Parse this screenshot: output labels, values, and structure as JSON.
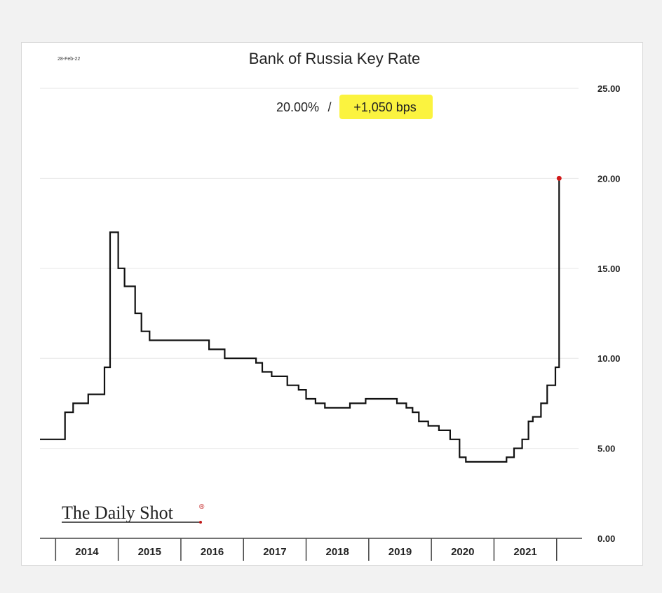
{
  "chart_data": {
    "type": "line",
    "step": true,
    "title": "Bank of Russia Key Rate",
    "date_stamp": "28-Feb-22",
    "subtitle_level": "20.00%",
    "subtitle_sep": "/",
    "subtitle_change": "+1,050 bps",
    "source": "The Daily Shot",
    "source_mark": "®",
    "ylim": [
      0,
      25
    ],
    "y_ticks": [
      "0.00",
      "5.00",
      "10.00",
      "15.00",
      "20.00",
      "25.00"
    ],
    "x_tick_labels": [
      "2014",
      "2015",
      "2016",
      "2017",
      "2018",
      "2019",
      "2020",
      "2021"
    ],
    "xlim": [
      2013.75,
      2022.35
    ],
    "grid": true,
    "y_axis_position": "right",
    "colors": {
      "line": "#111111",
      "endpoint": "#d11a1a",
      "highlight": "#fbf33f",
      "grid": "#e6e6e6"
    },
    "series": [
      {
        "values": [
          [
            2013.75,
            5.5
          ],
          [
            2014.15,
            5.5
          ],
          [
            2014.15,
            7.0
          ],
          [
            2014.28,
            7.0
          ],
          [
            2014.28,
            7.5
          ],
          [
            2014.52,
            7.5
          ],
          [
            2014.52,
            8.0
          ],
          [
            2014.78,
            8.0
          ],
          [
            2014.78,
            9.5
          ],
          [
            2014.87,
            9.5
          ],
          [
            2014.87,
            17.0
          ],
          [
            2015.0,
            17.0
          ],
          [
            2015.0,
            15.0
          ],
          [
            2015.1,
            15.0
          ],
          [
            2015.1,
            14.0
          ],
          [
            2015.27,
            14.0
          ],
          [
            2015.27,
            12.5
          ],
          [
            2015.37,
            12.5
          ],
          [
            2015.37,
            11.5
          ],
          [
            2015.5,
            11.5
          ],
          [
            2015.5,
            11.0
          ],
          [
            2016.45,
            11.0
          ],
          [
            2016.45,
            10.5
          ],
          [
            2016.7,
            10.5
          ],
          [
            2016.7,
            10.0
          ],
          [
            2017.2,
            10.0
          ],
          [
            2017.2,
            9.75
          ],
          [
            2017.3,
            9.75
          ],
          [
            2017.3,
            9.25
          ],
          [
            2017.45,
            9.25
          ],
          [
            2017.45,
            9.0
          ],
          [
            2017.7,
            9.0
          ],
          [
            2017.7,
            8.5
          ],
          [
            2017.88,
            8.5
          ],
          [
            2017.88,
            8.25
          ],
          [
            2018.0,
            8.25
          ],
          [
            2018.0,
            7.75
          ],
          [
            2018.15,
            7.75
          ],
          [
            2018.15,
            7.5
          ],
          [
            2018.3,
            7.5
          ],
          [
            2018.3,
            7.25
          ],
          [
            2018.7,
            7.25
          ],
          [
            2018.7,
            7.5
          ],
          [
            2018.95,
            7.5
          ],
          [
            2018.95,
            7.75
          ],
          [
            2019.45,
            7.75
          ],
          [
            2019.45,
            7.5
          ],
          [
            2019.6,
            7.5
          ],
          [
            2019.6,
            7.25
          ],
          [
            2019.7,
            7.25
          ],
          [
            2019.7,
            7.0
          ],
          [
            2019.8,
            7.0
          ],
          [
            2019.8,
            6.5
          ],
          [
            2019.95,
            6.5
          ],
          [
            2019.95,
            6.25
          ],
          [
            2020.12,
            6.25
          ],
          [
            2020.12,
            6.0
          ],
          [
            2020.3,
            6.0
          ],
          [
            2020.3,
            5.5
          ],
          [
            2020.45,
            5.5
          ],
          [
            2020.45,
            4.5
          ],
          [
            2020.55,
            4.5
          ],
          [
            2020.55,
            4.25
          ],
          [
            2021.2,
            4.25
          ],
          [
            2021.2,
            4.5
          ],
          [
            2021.32,
            4.5
          ],
          [
            2021.32,
            5.0
          ],
          [
            2021.45,
            5.0
          ],
          [
            2021.45,
            5.5
          ],
          [
            2021.55,
            5.5
          ],
          [
            2021.55,
            6.5
          ],
          [
            2021.62,
            6.5
          ],
          [
            2021.62,
            6.75
          ],
          [
            2021.75,
            6.75
          ],
          [
            2021.75,
            7.5
          ],
          [
            2021.85,
            7.5
          ],
          [
            2021.85,
            8.5
          ],
          [
            2021.98,
            8.5
          ],
          [
            2021.98,
            9.5
          ],
          [
            2022.04,
            9.5
          ],
          [
            2022.04,
            20.0
          ]
        ]
      }
    ]
  }
}
